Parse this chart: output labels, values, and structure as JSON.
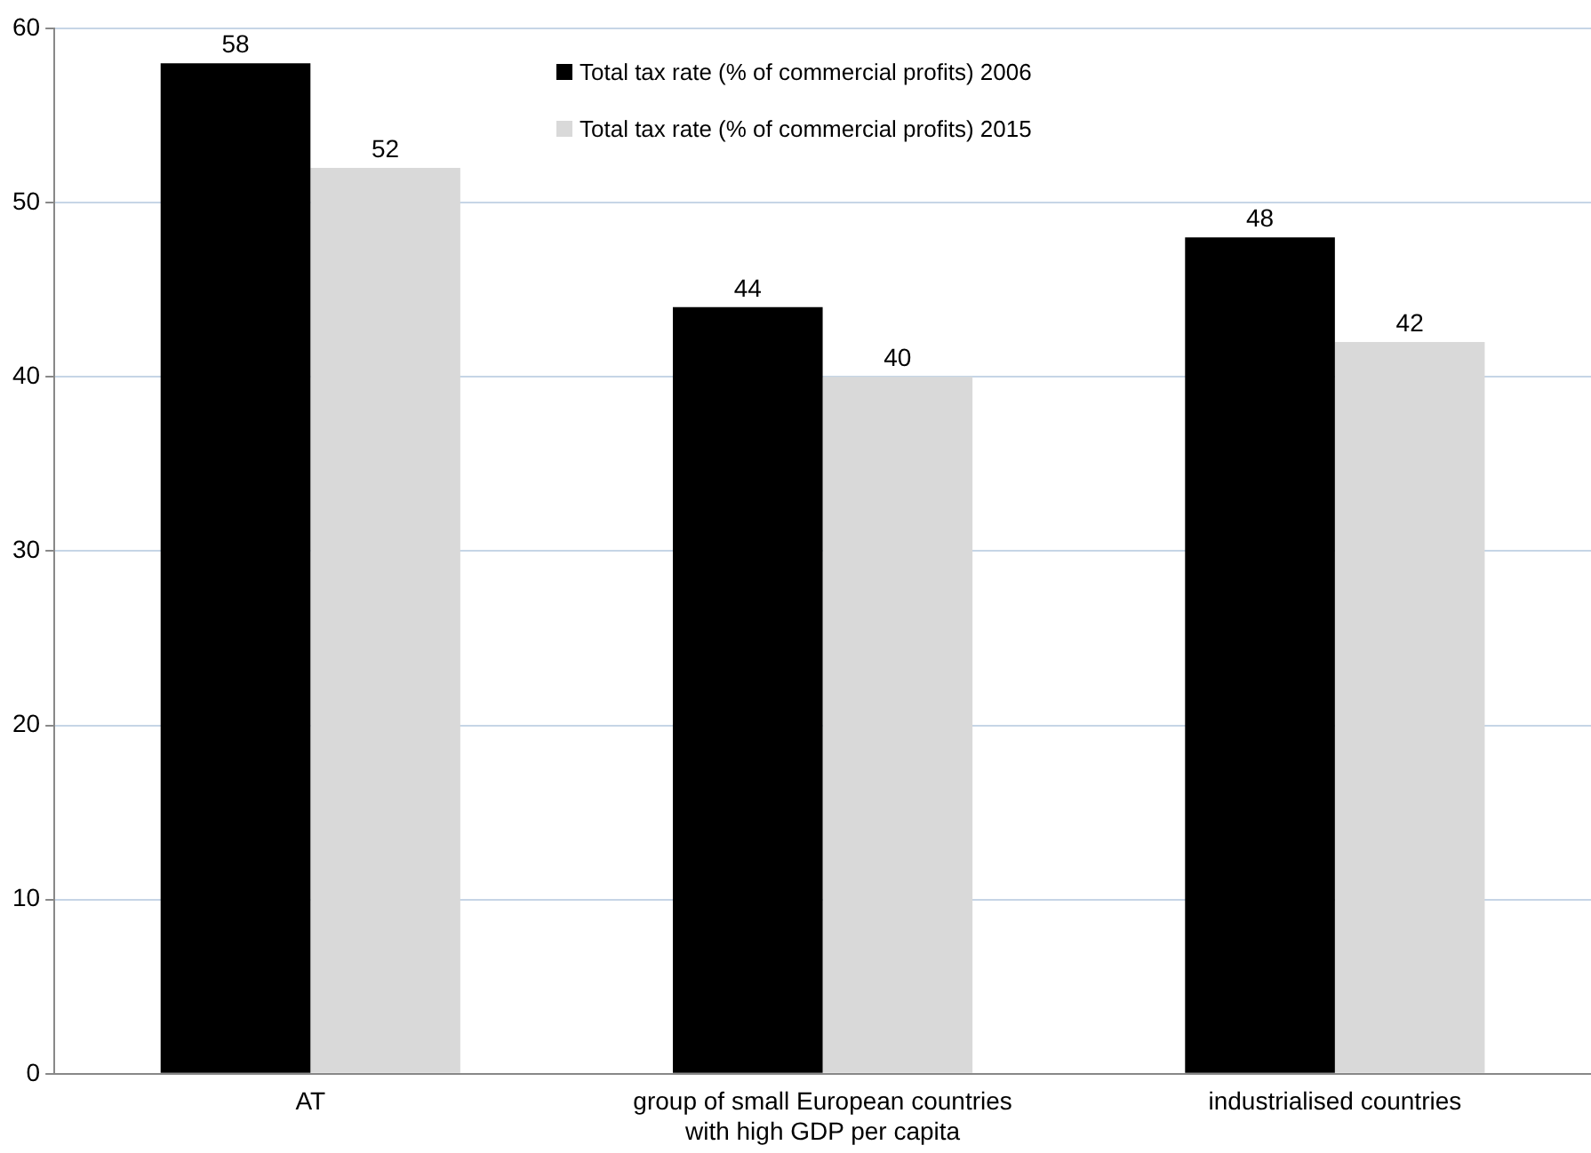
{
  "chart_data": {
    "type": "bar",
    "categories": [
      "AT",
      "group of small European countries with high GDP per capita",
      "industrialised countries"
    ],
    "series": [
      {
        "name": "Total tax rate (% of commercial profits) 2006",
        "color": "#000000",
        "values": [
          58,
          44,
          48
        ]
      },
      {
        "name": "Total tax rate (% of commercial profits) 2015",
        "color": "#d9d9d9",
        "values": [
          52,
          40,
          42
        ]
      }
    ],
    "ylim": [
      0,
      60
    ],
    "yticks": [
      0,
      10,
      20,
      30,
      40,
      50,
      60
    ],
    "grid": "y",
    "legend": "top",
    "data_labels": true
  }
}
